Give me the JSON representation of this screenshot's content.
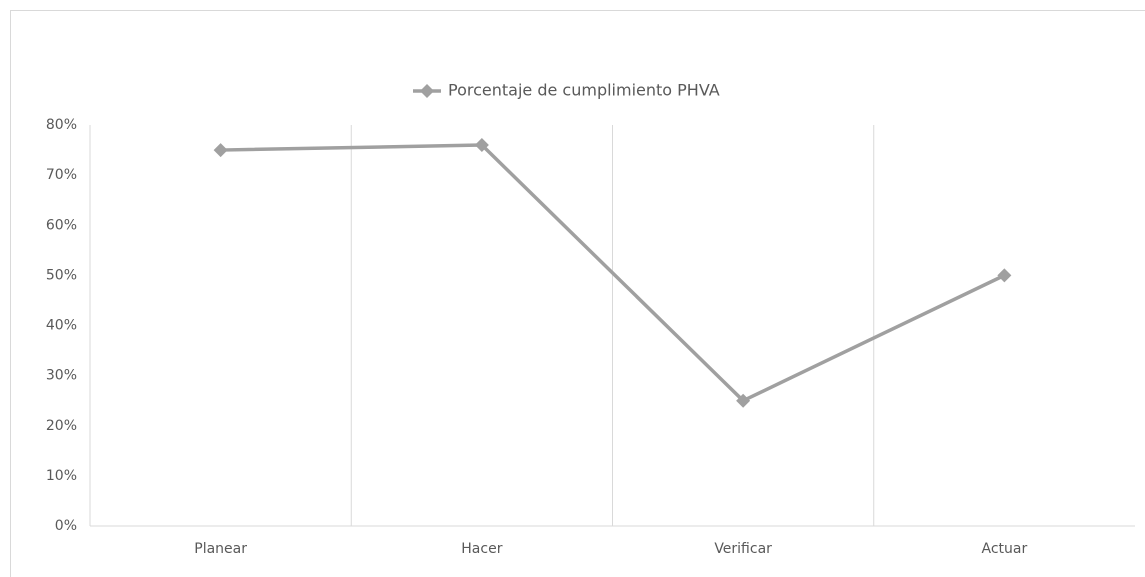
{
  "chart_data": {
    "type": "line",
    "categories": [
      "Planear",
      "Hacer",
      "Verificar",
      "Actuar"
    ],
    "series": [
      {
        "name": "Porcentaje de cumplimiento PHVA",
        "color": "#a0a0a0",
        "values": [
          75,
          76,
          25,
          50
        ]
      }
    ],
    "ylim": [
      0,
      80
    ],
    "yticks": [
      {
        "value": 0,
        "label": "0%"
      },
      {
        "value": 10,
        "label": "10%"
      },
      {
        "value": 20,
        "label": "20%"
      },
      {
        "value": 30,
        "label": "30%"
      },
      {
        "value": 40,
        "label": "40%"
      },
      {
        "value": 50,
        "label": "50%"
      },
      {
        "value": 60,
        "label": "60%"
      },
      {
        "value": 70,
        "label": "70%"
      },
      {
        "value": 80,
        "label": "80%"
      }
    ],
    "grid": true,
    "legend": "top",
    "marker": "diamond"
  }
}
